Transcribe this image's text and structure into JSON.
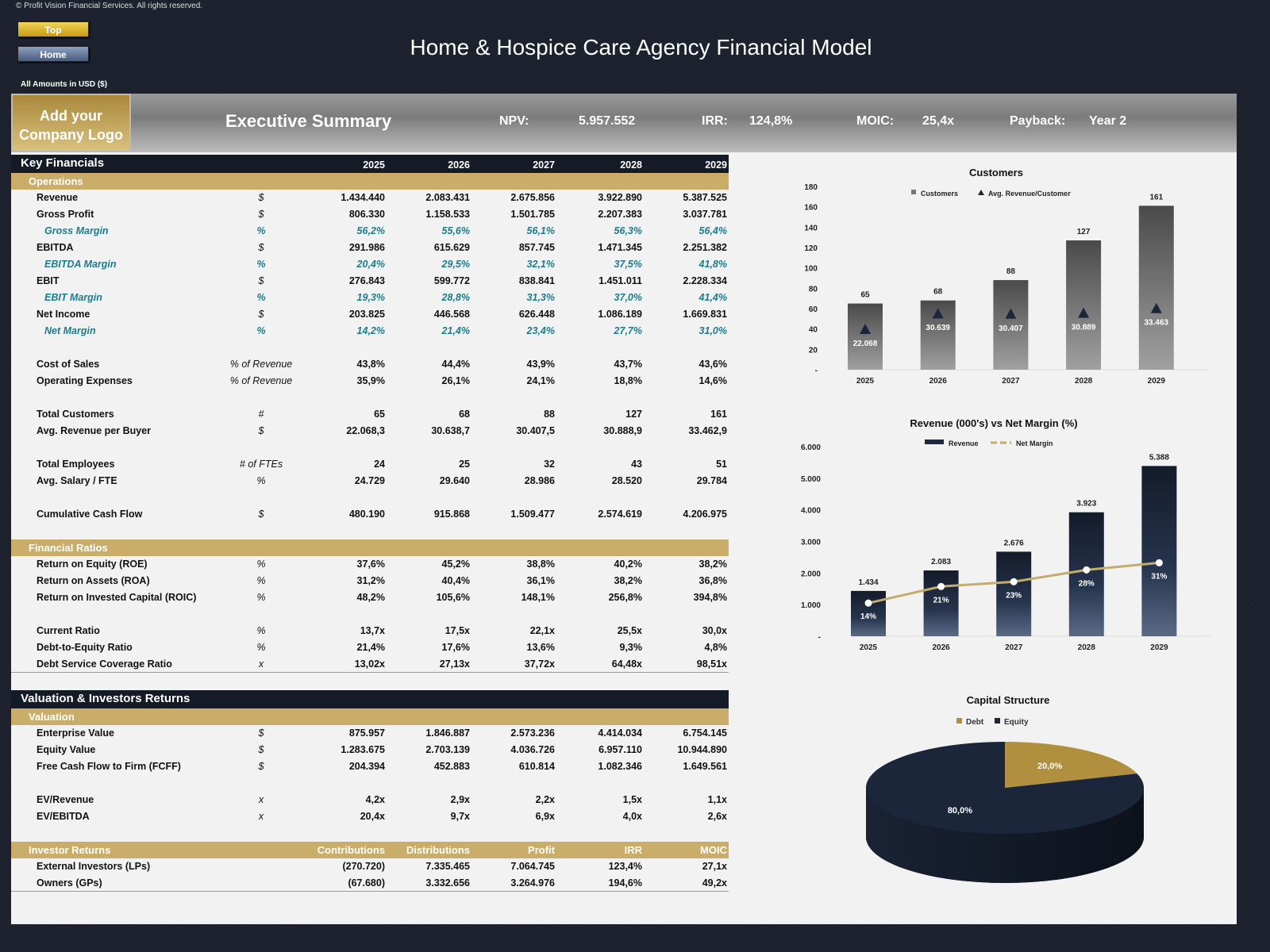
{
  "copyright": "© Profit Vision Financial Services. All rights reserved.",
  "nav": {
    "top": "Top",
    "home": "Home"
  },
  "title": "Home & Hospice Care Agency Financial Model",
  "amounts": "All Amounts in  USD ($)",
  "banner": {
    "logo": "Add your Company Logo",
    "section": "Executive Summary",
    "npv_label": "NPV:",
    "npv": "5.957.552",
    "irr_label": "IRR:",
    "irr": "124,8%",
    "moic_label": "MOIC:",
    "moic": "25,4x",
    "payback_label": "Payback:",
    "payback": "Year 2"
  },
  "colors": {
    "gold": "#c9ad69",
    "navy": "#141a26",
    "teal": "#1e7b8c",
    "debt": "#b0903f",
    "equity": "#1b263a"
  },
  "table": [
    {
      "kind": "hdr",
      "label": "Key Financials",
      "values": [
        "2025",
        "2026",
        "2027",
        "2028",
        "2029"
      ]
    },
    {
      "kind": "band",
      "label": "Operations"
    },
    {
      "kind": "row",
      "label": "Revenue",
      "unit": "$",
      "values": [
        "1.434.440",
        "2.083.431",
        "2.675.856",
        "3.922.890",
        "5.387.525"
      ]
    },
    {
      "kind": "row",
      "label": "Gross Profit",
      "unit": "$",
      "values": [
        "806.330",
        "1.158.533",
        "1.501.785",
        "2.207.383",
        "3.037.781"
      ]
    },
    {
      "kind": "sub",
      "label": "Gross Margin",
      "unit": "%",
      "values": [
        "56,2%",
        "55,6%",
        "56,1%",
        "56,3%",
        "56,4%"
      ]
    },
    {
      "kind": "row",
      "label": "EBITDA",
      "unit": "$",
      "values": [
        "291.986",
        "615.629",
        "857.745",
        "1.471.345",
        "2.251.382"
      ]
    },
    {
      "kind": "sub",
      "label": "EBITDA Margin",
      "unit": "%",
      "values": [
        "20,4%",
        "29,5%",
        "32,1%",
        "37,5%",
        "41,8%"
      ]
    },
    {
      "kind": "row",
      "label": "EBIT",
      "unit": "$",
      "values": [
        "276.843",
        "599.772",
        "838.841",
        "1.451.011",
        "2.228.334"
      ]
    },
    {
      "kind": "sub",
      "label": "EBIT Margin",
      "unit": "%",
      "values": [
        "19,3%",
        "28,8%",
        "31,3%",
        "37,0%",
        "41,4%"
      ]
    },
    {
      "kind": "row",
      "label": "Net Income",
      "unit": "$",
      "values": [
        "203.825",
        "446.568",
        "626.448",
        "1.086.189",
        "1.669.831"
      ]
    },
    {
      "kind": "sub",
      "label": "Net Margin",
      "unit": "%",
      "values": [
        "14,2%",
        "21,4%",
        "23,4%",
        "27,7%",
        "31,0%"
      ]
    },
    {
      "kind": "blank"
    },
    {
      "kind": "row",
      "label": "Cost of Sales",
      "unit": "% of Revenue",
      "values": [
        "43,8%",
        "44,4%",
        "43,9%",
        "43,7%",
        "43,6%"
      ]
    },
    {
      "kind": "row",
      "label": "Operating Expenses",
      "unit": "% of Revenue",
      "values": [
        "35,9%",
        "26,1%",
        "24,1%",
        "18,8%",
        "14,6%"
      ]
    },
    {
      "kind": "blank"
    },
    {
      "kind": "row",
      "label": "Total Customers",
      "unit": "#",
      "values": [
        "65",
        "68",
        "88",
        "127",
        "161"
      ]
    },
    {
      "kind": "row",
      "label": "Avg. Revenue per Buyer",
      "unit": "$",
      "values": [
        "22.068,3",
        "30.638,7",
        "30.407,5",
        "30.888,9",
        "33.462,9"
      ]
    },
    {
      "kind": "blank"
    },
    {
      "kind": "row",
      "label": "Total Employees",
      "unit": "# of FTEs",
      "values": [
        "24",
        "25",
        "32",
        "43",
        "51"
      ]
    },
    {
      "kind": "row",
      "label": "Avg. Salary / FTE",
      "unit": "%",
      "values": [
        "24.729",
        "29.640",
        "28.986",
        "28.520",
        "29.784"
      ]
    },
    {
      "kind": "blank"
    },
    {
      "kind": "row",
      "label": "Cumulative Cash Flow",
      "unit": "$",
      "values": [
        "480.190",
        "915.868",
        "1.509.477",
        "2.574.619",
        "4.206.975"
      ]
    },
    {
      "kind": "blank"
    },
    {
      "kind": "band",
      "label": "Financial Ratios"
    },
    {
      "kind": "row",
      "label": "Return on Equity (ROE)",
      "unit": "%",
      "values": [
        "37,6%",
        "45,2%",
        "38,8%",
        "40,2%",
        "38,2%"
      ]
    },
    {
      "kind": "row",
      "label": "Return on Assets (ROA)",
      "unit": "%",
      "values": [
        "31,2%",
        "40,4%",
        "36,1%",
        "38,2%",
        "36,8%"
      ]
    },
    {
      "kind": "row",
      "label": "Return on Invested Capital (ROIC)",
      "unit": "%",
      "values": [
        "48,2%",
        "105,6%",
        "148,1%",
        "256,8%",
        "394,8%"
      ]
    },
    {
      "kind": "blank"
    },
    {
      "kind": "row",
      "label": "Current Ratio",
      "unit": "%",
      "values": [
        "13,7x",
        "17,5x",
        "22,1x",
        "25,5x",
        "30,0x"
      ]
    },
    {
      "kind": "row",
      "label": "Debt-to-Equity Ratio",
      "unit": "%",
      "values": [
        "21,4%",
        "17,6%",
        "13,6%",
        "9,3%",
        "4,8%"
      ]
    },
    {
      "kind": "row",
      "label": "Debt Service Coverage Ratio",
      "unit": "x",
      "values": [
        "13,02x",
        "27,13x",
        "37,72x",
        "64,48x",
        "98,51x"
      ],
      "border": true
    },
    {
      "kind": "gap"
    },
    {
      "kind": "hdr",
      "label": "Valuation & Investors Returns"
    },
    {
      "kind": "band",
      "label": "Valuation"
    },
    {
      "kind": "row",
      "label": "Enterprise Value",
      "unit": "$",
      "values": [
        "875.957",
        "1.846.887",
        "2.573.236",
        "4.414.034",
        "6.754.145"
      ]
    },
    {
      "kind": "row",
      "label": "Equity Value",
      "unit": "$",
      "values": [
        "1.283.675",
        "2.703.139",
        "4.036.726",
        "6.957.110",
        "10.944.890"
      ]
    },
    {
      "kind": "row",
      "label": "Free Cash Flow to Firm (FCFF)",
      "unit": "$",
      "values": [
        "204.394",
        "452.883",
        "610.814",
        "1.082.346",
        "1.649.561"
      ]
    },
    {
      "kind": "blank"
    },
    {
      "kind": "row",
      "label": "EV/Revenue",
      "unit": "x",
      "values": [
        "4,2x",
        "2,9x",
        "2,2x",
        "1,5x",
        "1,1x"
      ]
    },
    {
      "kind": "row",
      "label": "EV/EBITDA",
      "unit": "x",
      "values": [
        "20,4x",
        "9,7x",
        "6,9x",
        "4,0x",
        "2,6x"
      ]
    },
    {
      "kind": "blank"
    },
    {
      "kind": "band",
      "label": "Investor Returns",
      "values": [
        "Contributions",
        "Distributions",
        "Profit",
        "IRR",
        "MOIC"
      ]
    },
    {
      "kind": "row",
      "label": "External Investors (LPs)",
      "values": [
        "(270.720)",
        "7.335.465",
        "7.064.745",
        "123,4%",
        "27,1x"
      ]
    },
    {
      "kind": "row",
      "label": "Owners (GPs)",
      "values": [
        "(67.680)",
        "3.332.656",
        "3.264.976",
        "194,6%",
        "49,2x"
      ],
      "border": true
    }
  ],
  "chart_data": [
    {
      "type": "bar",
      "title": "Customers",
      "categories": [
        "2025",
        "2026",
        "2027",
        "2028",
        "2029"
      ],
      "series": [
        {
          "name": "Customers",
          "values": [
            65,
            68,
            88,
            127,
            161
          ],
          "labels": [
            "65",
            "68",
            "88",
            "127",
            "161"
          ]
        },
        {
          "name": "Avg. Revenue/Customer",
          "type": "scatter",
          "axis": "secondary",
          "values": [
            22068,
            30639,
            30407,
            30889,
            33463
          ],
          "labels": [
            "22.068",
            "30.639",
            "30.407",
            "30.889",
            "33.463"
          ]
        }
      ],
      "ylim": [
        0,
        180
      ],
      "y2lim": [
        0,
        100000
      ],
      "yticks": [
        "-",
        "20",
        "40",
        "60",
        "80",
        "100",
        "120",
        "140",
        "160",
        "180"
      ],
      "legend": "top"
    },
    {
      "type": "bar",
      "title": "Revenue (000's) vs Net Margin (%)",
      "categories": [
        "2025",
        "2026",
        "2027",
        "2028",
        "2029"
      ],
      "series": [
        {
          "name": "Revenue",
          "values": [
            1434,
            2083,
            2676,
            3923,
            5388
          ],
          "labels": [
            "1.434",
            "2.083",
            "2.676",
            "3.923",
            "5.388"
          ]
        },
        {
          "name": "Net Margin",
          "type": "line",
          "axis": "secondary",
          "values": [
            14,
            21,
            23,
            28,
            31
          ],
          "labels": [
            "14%",
            "21%",
            "23%",
            "28%",
            "31%"
          ]
        }
      ],
      "ylim": [
        0,
        6000
      ],
      "y2lim": [
        0,
        80
      ],
      "yticks": [
        "-",
        "1.000",
        "2.000",
        "3.000",
        "4.000",
        "5.000",
        "6.000"
      ],
      "legend": "top"
    },
    {
      "type": "pie",
      "title": "Capital Structure",
      "slices": [
        {
          "name": "Debt",
          "value": 20,
          "label": "20,0%"
        },
        {
          "name": "Equity",
          "value": 80,
          "label": "80,0%"
        }
      ],
      "legend": "top"
    }
  ]
}
